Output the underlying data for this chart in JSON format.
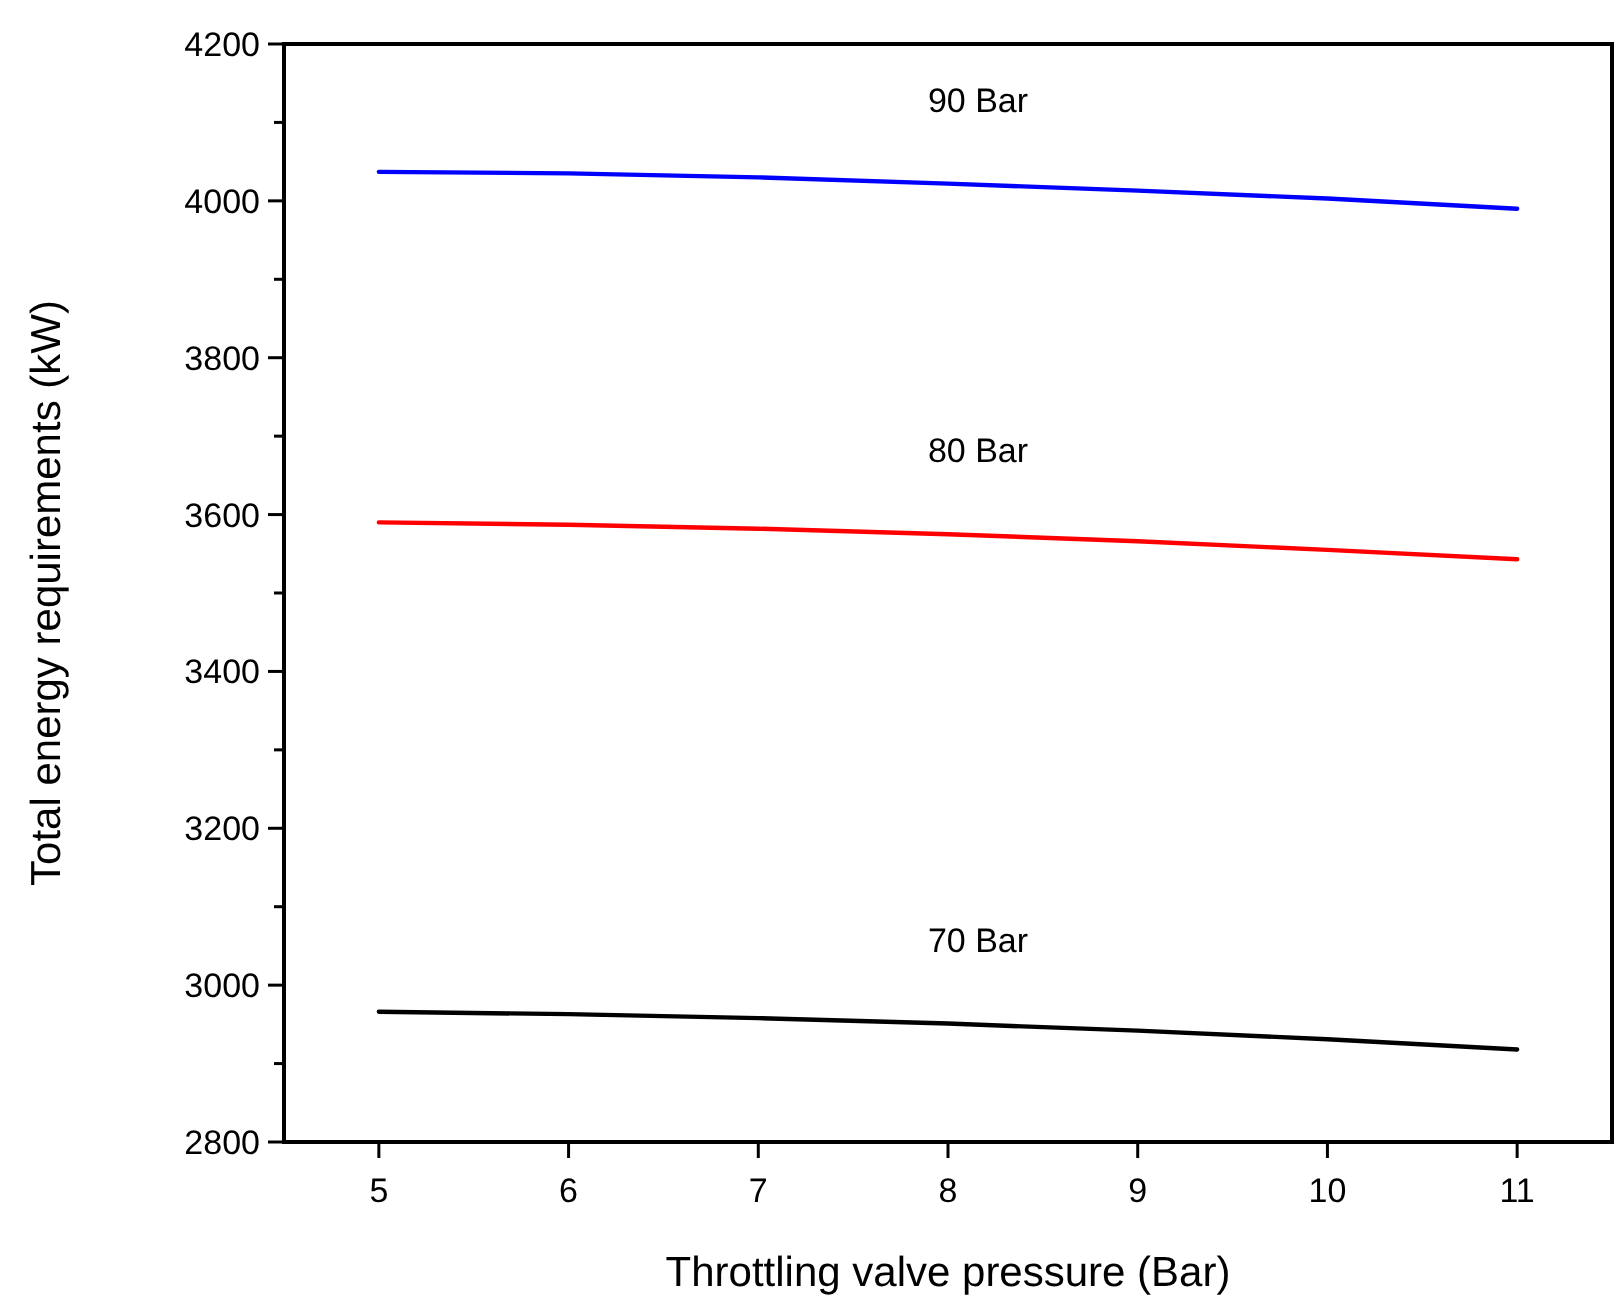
{
  "chart_data": {
    "type": "line",
    "xlabel": "Throttling valve pressure (Bar)",
    "ylabel": "Total energy requirements (kW)",
    "x": [
      5,
      6,
      7,
      8,
      9,
      10,
      11
    ],
    "series": [
      {
        "name": "90 Bar",
        "color": "#0000ff",
        "values": [
          4037,
          4035,
          4030,
          4022,
          4013,
          4003,
          3990
        ]
      },
      {
        "name": "80 Bar",
        "color": "#ff0000",
        "values": [
          3590,
          3587,
          3582,
          3575,
          3566,
          3555,
          3543
        ]
      },
      {
        "name": "70 Bar",
        "color": "#000000",
        "values": [
          2966,
          2963,
          2958,
          2951,
          2942,
          2931,
          2918
        ]
      }
    ],
    "xlim": [
      4.5,
      11.5
    ],
    "xticks": [
      5,
      6,
      7,
      8,
      9,
      10,
      11
    ],
    "ylim": [
      2800,
      4200
    ],
    "yticks": [
      2800,
      {
        "value": 2900,
        "label": null
      },
      3000,
      {
        "value": 3100,
        "label": null
      },
      3200,
      {
        "value": 3300,
        "label": null
      },
      3400,
      {
        "value": 3500,
        "label": null
      },
      3600,
      {
        "value": 3700,
        "label": null
      },
      3800,
      {
        "value": 3900,
        "label": null
      },
      4000,
      {
        "value": 4100,
        "label": null
      },
      4200
    ],
    "grid": false,
    "marker": "none",
    "line_style": "solid"
  }
}
